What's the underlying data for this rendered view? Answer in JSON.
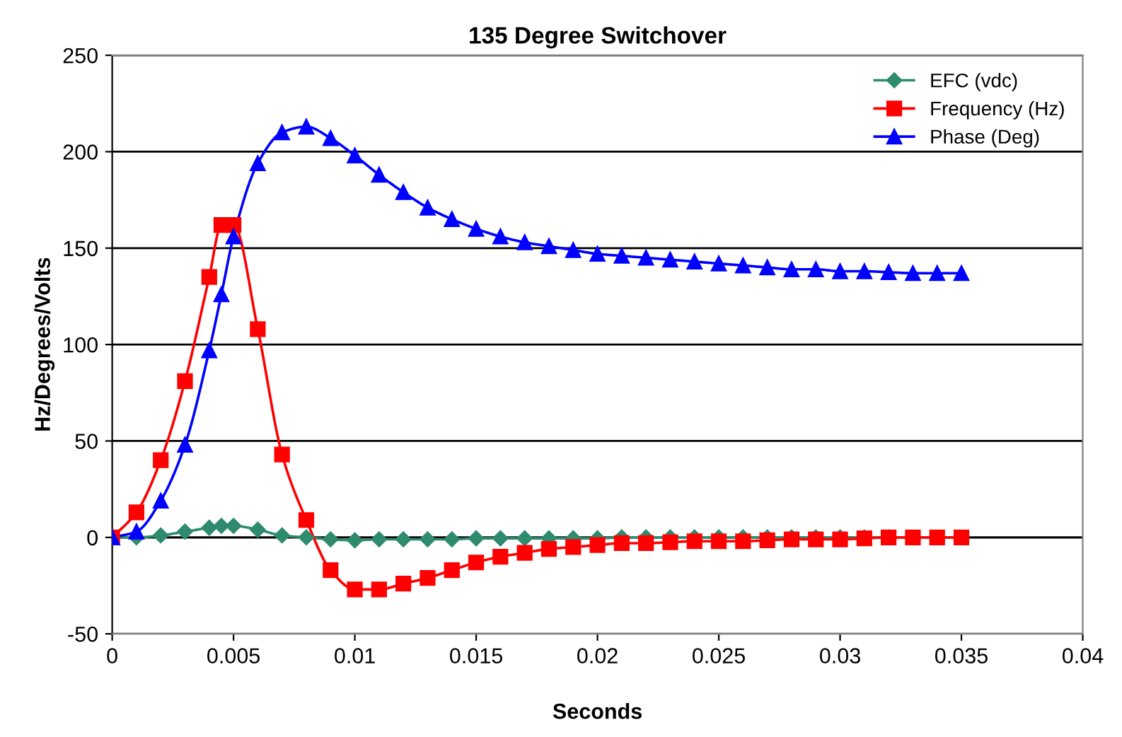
{
  "chart_data": {
    "type": "line",
    "title": "135 Degree Switchover",
    "xlabel": "Seconds",
    "ylabel": "Hz/Degrees/Volts",
    "x": [
      0,
      0.001,
      0.002,
      0.003,
      0.004,
      0.0045,
      0.005,
      0.006,
      0.007,
      0.008,
      0.009,
      0.01,
      0.011,
      0.012,
      0.013,
      0.014,
      0.015,
      0.016,
      0.017,
      0.018,
      0.019,
      0.02,
      0.021,
      0.022,
      0.023,
      0.024,
      0.025,
      0.026,
      0.027,
      0.028,
      0.029,
      0.03,
      0.031,
      0.032,
      0.033,
      0.034,
      0.035
    ],
    "series": [
      {
        "name": "EFC (vdc)",
        "color": "#2e8b6e",
        "marker": "diamond",
        "values": [
          0,
          0,
          1,
          3,
          5,
          6,
          6,
          4,
          1,
          0,
          -1,
          -1.5,
          -1,
          -1,
          -1,
          -1,
          -0.5,
          -0.5,
          -0.5,
          -0.5,
          -0.5,
          -0.5,
          0,
          0,
          0,
          0,
          0,
          0,
          0,
          0,
          0,
          0,
          0,
          0,
          null,
          null,
          null
        ]
      },
      {
        "name": "Frequency (Hz)",
        "color": "#ff0000",
        "marker": "square",
        "values": [
          0,
          13,
          40,
          81,
          135,
          162,
          162,
          108,
          43,
          9,
          -17,
          -27,
          -27,
          -24,
          -21,
          -17,
          -13,
          -10,
          -8,
          -6,
          -5,
          -4,
          -3,
          -3,
          -2.5,
          -2,
          -2,
          -2,
          -1.5,
          -1,
          -1,
          -1,
          -0.5,
          0,
          0,
          0,
          0
        ]
      },
      {
        "name": "Phase (Deg)",
        "color": "#0000ff",
        "marker": "triangle",
        "values": [
          0,
          3,
          19,
          48,
          97,
          126,
          156,
          194,
          210,
          213,
          207,
          198,
          188,
          179,
          171,
          165,
          160,
          156,
          153,
          151,
          149,
          147,
          146,
          145,
          144,
          143,
          142,
          141,
          140,
          139,
          139,
          138,
          138,
          137.5,
          137,
          137,
          137
        ]
      }
    ],
    "xlim": [
      0,
      0.04
    ],
    "xticks": [
      0,
      0.005,
      0.01,
      0.015,
      0.02,
      0.025,
      0.03,
      0.035,
      0.04
    ],
    "ylim": [
      -50,
      250
    ],
    "yticks": [
      -50,
      0,
      50,
      100,
      150,
      200,
      250
    ],
    "grid": "y",
    "legend": "top right",
    "line_style": "solid"
  }
}
